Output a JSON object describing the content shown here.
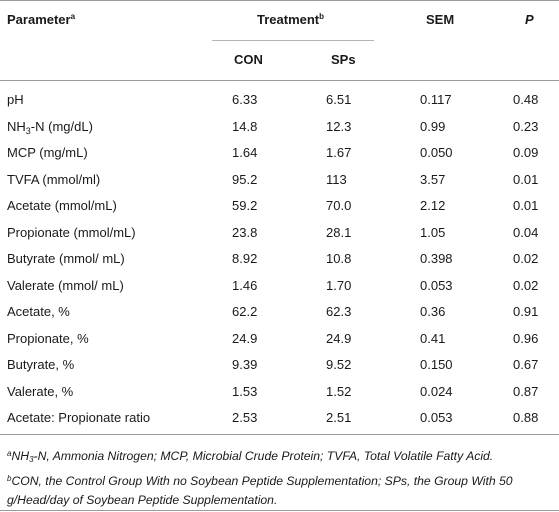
{
  "table": {
    "headers": {
      "parameter": "Parameter",
      "parameter_sup": "a",
      "treatment": "Treatment",
      "treatment_sup": "b",
      "sem": "SEM",
      "p": "P",
      "con": "CON",
      "sps": "SPs"
    },
    "rows": [
      {
        "param": "pH",
        "con": "6.33",
        "sps": "6.51",
        "sem": "0.117",
        "p": "0.48"
      },
      {
        "param_pre": "NH",
        "param_sub": "3",
        "param_post": "-N (mg/dL)",
        "con": "14.8",
        "sps": "12.3",
        "sem": "0.99",
        "p": "0.23"
      },
      {
        "param": "MCP (mg/mL)",
        "con": "1.64",
        "sps": "1.67",
        "sem": "0.050",
        "p": "0.09"
      },
      {
        "param": "TVFA (mmol/ml)",
        "con": "95.2",
        "sps": "113",
        "sem": "3.57",
        "p": "0.01"
      },
      {
        "param": "Acetate (mmol/mL)",
        "con": "59.2",
        "sps": "70.0",
        "sem": "2.12",
        "p": "0.01"
      },
      {
        "param": "Propionate (mmol/mL)",
        "con": "23.8",
        "sps": "28.1",
        "sem": "1.05",
        "p": "0.04"
      },
      {
        "param": "Butyrate (mmol/ mL)",
        "con": "8.92",
        "sps": "10.8",
        "sem": "0.398",
        "p": "0.02"
      },
      {
        "param": "Valerate (mmol/ mL)",
        "con": "1.46",
        "sps": "1.70",
        "sem": "0.053",
        "p": "0.02"
      },
      {
        "param": "Acetate, %",
        "con": "62.2",
        "sps": "62.3",
        "sem": "0.36",
        "p": "0.91"
      },
      {
        "param": "Propionate, %",
        "con": "24.9",
        "sps": "24.9",
        "sem": "0.41",
        "p": "0.96"
      },
      {
        "param": "Butyrate, %",
        "con": "9.39",
        "sps": "9.52",
        "sem": "0.150",
        "p": "0.67"
      },
      {
        "param": "Valerate, %",
        "con": "1.53",
        "sps": "1.52",
        "sem": "0.024",
        "p": "0.87"
      },
      {
        "param": "Acetate: Propionate ratio",
        "con": "2.53",
        "sps": "2.51",
        "sem": "0.053",
        "p": "0.88"
      }
    ]
  },
  "notes": {
    "a_mark": "a",
    "a_pre": "NH",
    "a_sub": "3",
    "a_post": "-N, Ammonia Nitrogen; MCP, Microbial Crude Protein; TVFA, Total Volatile Fatty Acid.",
    "b_mark": "b",
    "b_text": "CON, the Control Group With no Soybean Peptide Supplementation; SPs, the Group With 50 g/Head/day of Soybean Peptide Supplementation."
  }
}
